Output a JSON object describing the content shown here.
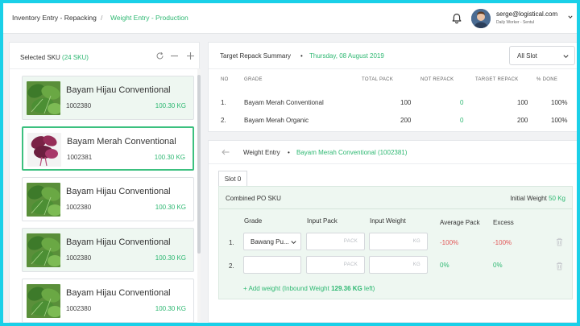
{
  "topbar": {
    "breadcrumb_parent": "Inventory Entry - Repacking",
    "breadcrumb_sep": "/",
    "breadcrumb_current": "Weight Entry - Production",
    "user_email": "serge@logistical.com",
    "user_role": "Daily Worker - Sentul"
  },
  "left": {
    "title": "Selected SKU",
    "count": "(24 SKU)",
    "items": [
      {
        "name": "Bayam Hijau Conventional",
        "code": "1002380",
        "weight": "100.30 KG",
        "state": "tinted",
        "image": "spinach-green"
      },
      {
        "name": "Bayam Merah Conventional",
        "code": "1002381",
        "weight": "100.30 KG",
        "state": "selected",
        "image": "spinach-red"
      },
      {
        "name": "Bayam Hijau Conventional",
        "code": "1002380",
        "weight": "100.30 KG",
        "state": "normal",
        "image": "spinach-green"
      },
      {
        "name": "Bayam Hijau Conventional",
        "code": "1002380",
        "weight": "100.30 KG",
        "state": "tinted",
        "image": "spinach-green"
      },
      {
        "name": "Bayam Hijau Conventional",
        "code": "1002380",
        "weight": "100.30 KG",
        "state": "normal",
        "image": "spinach-green"
      }
    ]
  },
  "summary": {
    "title": "Target Repack Summary",
    "dot": "•",
    "date": "Thursday, 08 August 2019",
    "slot_select": "All Slot",
    "headers": [
      "NO",
      "GRADE",
      "TOTAL PACK",
      "NOT REPACK",
      "TARGET REPACK",
      "% DONE"
    ],
    "rows": [
      {
        "no": "1.",
        "grade": "Bayam Merah Conventional",
        "total": "100",
        "not_repack": "0",
        "target": "100",
        "done": "100%"
      },
      {
        "no": "2.",
        "grade": "Bayam Merah Organic",
        "total": "200",
        "not_repack": "0",
        "target": "200",
        "done": "100%"
      }
    ]
  },
  "weight_entry": {
    "title": "Weight Entry",
    "dot": "•",
    "sku": "Bayam Merah Conventional (1002381)",
    "slot_tab": "Slot 0",
    "combined_title": "Combined PO SKU",
    "initial_weight_label": "Initial Weight",
    "initial_weight_value": "50 Kg",
    "columns": [
      "Grade",
      "Input Pack",
      "Input Weight",
      "Average Pack",
      "Excess"
    ],
    "pack_placeholder": "PACK",
    "weight_placeholder": "KG",
    "rows": [
      {
        "no": "1.",
        "grade": "Bawang Pu...",
        "avg_pack": "-100%",
        "excess": "-100%"
      },
      {
        "no": "2.",
        "grade": "",
        "avg_pack": "0%",
        "excess": "0%"
      }
    ],
    "add_weight_prefix": "+ Add weight (Inbound Weight",
    "add_weight_value": "129.36 KG",
    "add_weight_suffix": "left)"
  },
  "colors": {
    "accent_green": "#2eb872",
    "negative_red": "#e25555",
    "frame_cyan": "#1ad0e8"
  }
}
